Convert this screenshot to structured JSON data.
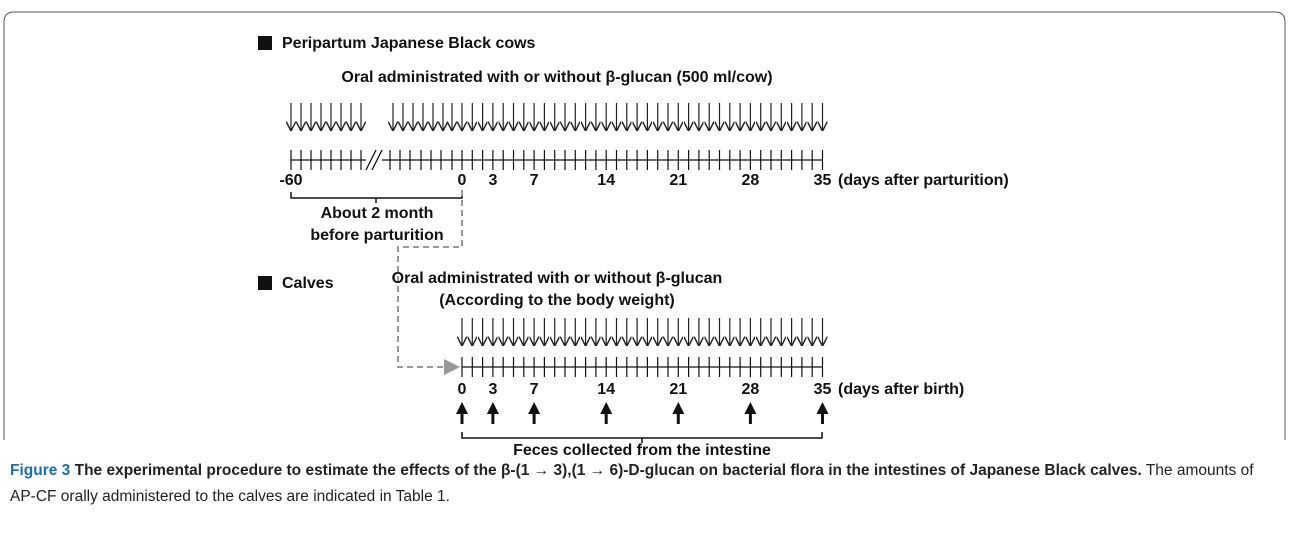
{
  "cows": {
    "heading": "Peripartum Japanese Black cows",
    "administration": "Oral administrated with or without  β-glucan (500 ml/cow)",
    "tick_labels": [
      "-60",
      "0",
      "3",
      "7",
      "14",
      "21",
      "28",
      "35"
    ],
    "axis_label": "(days after parturition)",
    "bracket_lines": [
      "About 2 month",
      "before parturition"
    ]
  },
  "calves": {
    "heading": "Calves",
    "administration_lines": [
      "Oral administrated with or without  β-glucan",
      "(According to the body weight)"
    ],
    "tick_labels": [
      "0",
      "3",
      "7",
      "14",
      "21",
      "28",
      "35"
    ],
    "axis_label": "(days after birth)",
    "collection": "Feces collected from the intestine"
  },
  "caption": {
    "label": "Figure 3",
    "title": "The experimental procedure to estimate the effects of the β-(1 → 3),(1 → 6)-D-glucan on bacterial flora in the intestines of Japanese Black calves.",
    "text": "The amounts of AP-CF orally administered to the calves are indicated in Table 1."
  }
}
